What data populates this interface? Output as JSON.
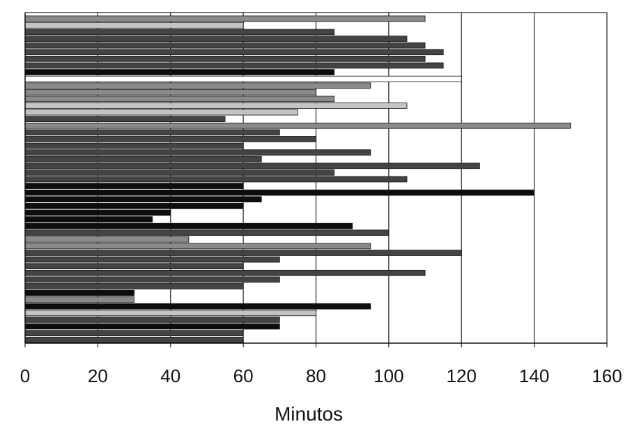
{
  "chart_data": {
    "type": "bar",
    "orientation": "horizontal",
    "title": "",
    "xlabel": "Minutos",
    "ylabel": "",
    "xlim": [
      0,
      160
    ],
    "xticks": [
      "0",
      "20",
      "40",
      "60",
      "80",
      "100",
      "120",
      "140",
      "160"
    ],
    "grid": "vertical",
    "legend": "none",
    "shade_colors": {
      "black": "#0d0d0d",
      "dark": "#444444",
      "medium": "#8a8a8a",
      "light": "#c4c4c4",
      "white": "#ffffff"
    },
    "bars": [
      {
        "value": 110,
        "shade": "medium"
      },
      {
        "value": 60,
        "shade": "light"
      },
      {
        "value": 85,
        "shade": "dark"
      },
      {
        "value": 105,
        "shade": "dark"
      },
      {
        "value": 110,
        "shade": "dark"
      },
      {
        "value": 115,
        "shade": "dark"
      },
      {
        "value": 110,
        "shade": "dark"
      },
      {
        "value": 115,
        "shade": "dark"
      },
      {
        "value": 85,
        "shade": "black"
      },
      {
        "value": 120,
        "shade": "white"
      },
      {
        "value": 95,
        "shade": "medium"
      },
      {
        "value": 80,
        "shade": "medium"
      },
      {
        "value": 85,
        "shade": "medium"
      },
      {
        "value": 105,
        "shade": "light"
      },
      {
        "value": 75,
        "shade": "light"
      },
      {
        "value": 55,
        "shade": "dark"
      },
      {
        "value": 150,
        "shade": "medium"
      },
      {
        "value": 70,
        "shade": "dark"
      },
      {
        "value": 80,
        "shade": "dark"
      },
      {
        "value": 60,
        "shade": "dark"
      },
      {
        "value": 95,
        "shade": "dark"
      },
      {
        "value": 65,
        "shade": "dark"
      },
      {
        "value": 125,
        "shade": "dark"
      },
      {
        "value": 85,
        "shade": "dark"
      },
      {
        "value": 105,
        "shade": "dark"
      },
      {
        "value": 60,
        "shade": "black"
      },
      {
        "value": 140,
        "shade": "black"
      },
      {
        "value": 65,
        "shade": "black"
      },
      {
        "value": 60,
        "shade": "black"
      },
      {
        "value": 40,
        "shade": "black"
      },
      {
        "value": 35,
        "shade": "black"
      },
      {
        "value": 90,
        "shade": "black"
      },
      {
        "value": 100,
        "shade": "dark"
      },
      {
        "value": 45,
        "shade": "medium"
      },
      {
        "value": 95,
        "shade": "medium"
      },
      {
        "value": 120,
        "shade": "dark"
      },
      {
        "value": 70,
        "shade": "dark"
      },
      {
        "value": 60,
        "shade": "dark"
      },
      {
        "value": 110,
        "shade": "dark"
      },
      {
        "value": 70,
        "shade": "dark"
      },
      {
        "value": 60,
        "shade": "dark"
      },
      {
        "value": 30,
        "shade": "black"
      },
      {
        "value": 30,
        "shade": "medium"
      },
      {
        "value": 95,
        "shade": "black"
      },
      {
        "value": 80,
        "shade": "light"
      },
      {
        "value": 70,
        "shade": "dark"
      },
      {
        "value": 70,
        "shade": "black"
      },
      {
        "value": 60,
        "shade": "dark"
      },
      {
        "value": 60,
        "shade": "dark"
      }
    ]
  }
}
